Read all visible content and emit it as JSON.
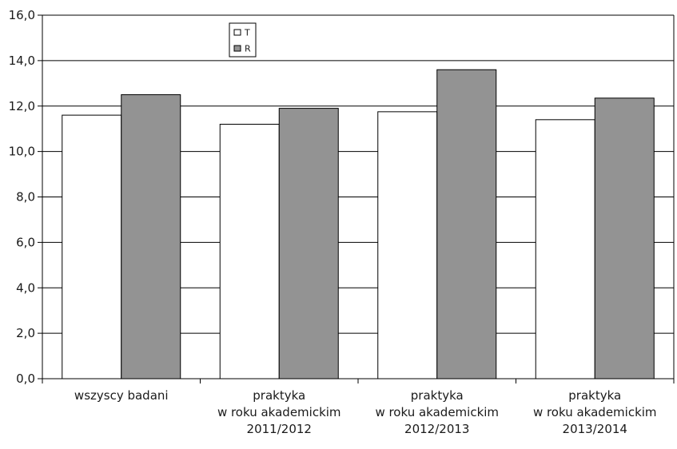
{
  "chart_data": {
    "type": "bar",
    "categories": [
      [
        "wszyscy badani"
      ],
      [
        "praktyka",
        "w roku akademickim",
        "2011/2012"
      ],
      [
        "praktyka",
        "w roku akademickim",
        "2012/2013"
      ],
      [
        "praktyka",
        "w roku akademickim",
        "2013/2014"
      ]
    ],
    "series": [
      {
        "name": "T",
        "color": "#ffffff",
        "values": [
          11.6,
          11.2,
          11.75,
          11.4
        ]
      },
      {
        "name": "R",
        "color": "#939393",
        "values": [
          12.5,
          11.9,
          13.6,
          12.35
        ]
      }
    ],
    "y_ticks": [
      "0,0",
      "2,0",
      "4,0",
      "6,0",
      "8,0",
      "10,0",
      "12,0",
      "14,0",
      "16,0"
    ],
    "ylim": [
      0,
      16
    ],
    "grid": true,
    "legend_position": "top-left-inside"
  }
}
